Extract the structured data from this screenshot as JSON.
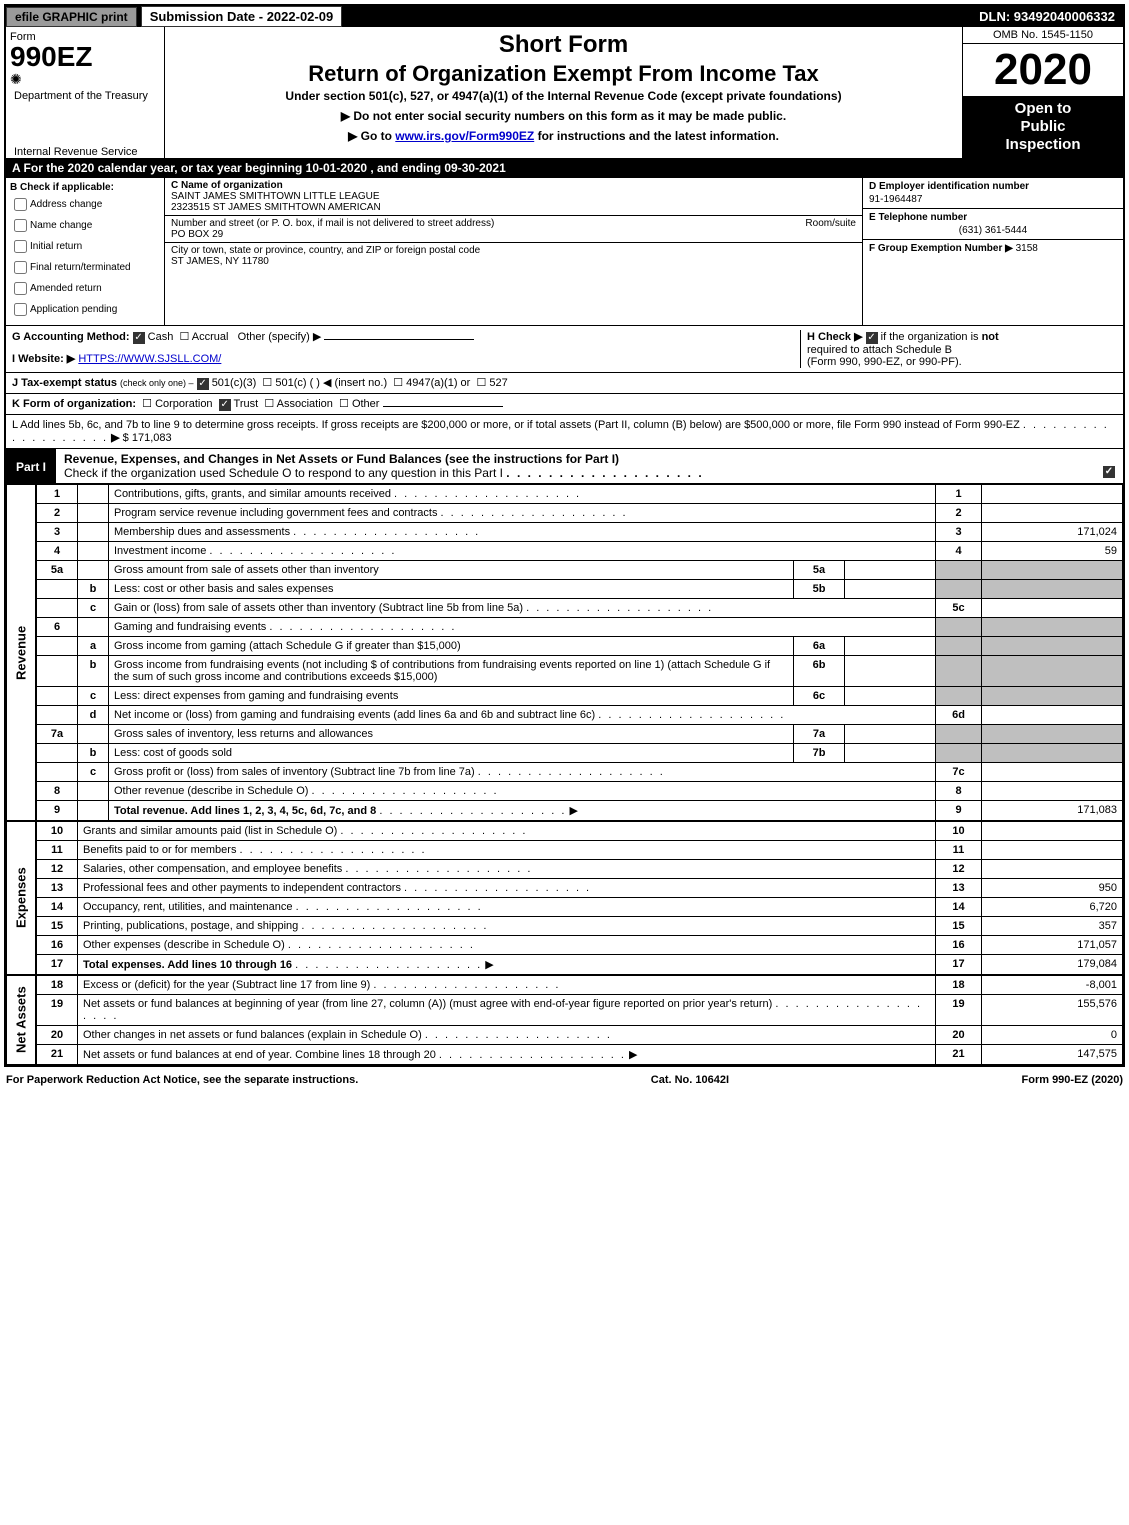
{
  "top_bar": {
    "efile_label": "efile GRAPHIC print",
    "submission_label": "Submission Date - 2022-02-09",
    "dln_label": "DLN: 93492040006332"
  },
  "header": {
    "form_word": "Form",
    "form_number": "990EZ",
    "dept": "Department of the Treasury",
    "irs": "Internal Revenue Service",
    "short_form": "Short Form",
    "main_title": "Return of Organization Exempt From Income Tax",
    "subtitle": "Under section 501(c), 527, or 4947(a)(1) of the Internal Revenue Code (except private foundations)",
    "instr1": "▶ Do not enter social security numbers on this form as it may be made public.",
    "instr2_prefix": "▶ Go to ",
    "instr2_link": "www.irs.gov/Form990EZ",
    "instr2_suffix": " for instructions and the latest information.",
    "omb": "OMB No. 1545-1150",
    "year": "2020",
    "open_line1": "Open to",
    "open_line2": "Public",
    "open_line3": "Inspection"
  },
  "section_a": "A For the 2020 calendar year, or tax year beginning 10-01-2020 , and ending 09-30-2021",
  "section_b": {
    "label": "B Check if applicable:",
    "items": [
      "Address change",
      "Name change",
      "Initial return",
      "Final return/terminated",
      "Amended return",
      "Application pending"
    ]
  },
  "section_c": {
    "name_label": "C Name of organization",
    "name1": "SAINT JAMES SMITHTOWN LITTLE LEAGUE",
    "name2": "2323515 ST JAMES SMITHTOWN AMERICAN",
    "addr_label": "Number and street (or P. O. box, if mail is not delivered to street address)",
    "room_label": "Room/suite",
    "addr": "PO BOX 29",
    "city_label": "City or town, state or province, country, and ZIP or foreign postal code",
    "city": "ST JAMES, NY  11780"
  },
  "section_d": {
    "d_label": "D Employer identification number",
    "d_val": "91-1964487",
    "e_label": "E Telephone number",
    "e_val": "(631) 361-5444",
    "f_label": "F Group Exemption Number",
    "f_arrow": "▶",
    "f_val": "3158"
  },
  "section_g": {
    "label": "G Accounting Method:",
    "cash": "Cash",
    "accrual": "Accrual",
    "other": "Other (specify) ▶"
  },
  "section_h": {
    "label": "H Check ▶",
    "text1": "if the organization is ",
    "bold_not": "not",
    "text2": " required to attach Schedule B",
    "text3": "(Form 990, 990-EZ, or 990-PF)."
  },
  "section_i": {
    "label": "I Website: ▶",
    "url": "HTTPS://WWW.SJSLL.COM/"
  },
  "section_j": {
    "label": "J Tax-exempt status",
    "note": "(check only one) –",
    "opt1": "501(c)(3)",
    "opt2": "501(c) (  ) ◀ (insert no.)",
    "opt3": "4947(a)(1) or",
    "opt4": "527"
  },
  "section_k": {
    "label": "K Form of organization:",
    "corp": "Corporation",
    "trust": "Trust",
    "assoc": "Association",
    "other": "Other"
  },
  "section_l": {
    "text": "L Add lines 5b, 6c, and 7b to line 9 to determine gross receipts. If gross receipts are $200,000 or more, or if total assets (Part II, column (B) below) are $500,000 or more, file Form 990 instead of Form 990-EZ",
    "arrow": "▶",
    "amount": "$ 171,083"
  },
  "part1": {
    "label": "Part I",
    "title": "Revenue, Expenses, and Changes in Net Assets or Fund Balances (see the instructions for Part I)",
    "check_line": "Check if the organization used Schedule O to respond to any question in this Part I"
  },
  "revenue": {
    "side": "Revenue",
    "rows": [
      {
        "n": "1",
        "sub": "",
        "desc": "Contributions, gifts, grants, and similar amounts received",
        "box": "",
        "ln": "1",
        "val": ""
      },
      {
        "n": "2",
        "sub": "",
        "desc": "Program service revenue including government fees and contracts",
        "box": "",
        "ln": "2",
        "val": ""
      },
      {
        "n": "3",
        "sub": "",
        "desc": "Membership dues and assessments",
        "box": "",
        "ln": "3",
        "val": "171,024"
      },
      {
        "n": "4",
        "sub": "",
        "desc": "Investment income",
        "box": "",
        "ln": "4",
        "val": "59"
      },
      {
        "n": "5a",
        "sub": "",
        "desc": "Gross amount from sale of assets other than inventory",
        "box": "5a",
        "ln": "",
        "val": "",
        "shaded": true
      },
      {
        "n": "",
        "sub": "b",
        "desc": "Less: cost or other basis and sales expenses",
        "box": "5b",
        "ln": "",
        "val": "",
        "shaded": true
      },
      {
        "n": "",
        "sub": "c",
        "desc": "Gain or (loss) from sale of assets other than inventory (Subtract line 5b from line 5a)",
        "box": "",
        "ln": "5c",
        "val": ""
      },
      {
        "n": "6",
        "sub": "",
        "desc": "Gaming and fundraising events",
        "box": "",
        "ln": "",
        "val": "",
        "shaded": true
      },
      {
        "n": "",
        "sub": "a",
        "desc": "Gross income from gaming (attach Schedule G if greater than $15,000)",
        "box": "6a",
        "ln": "",
        "val": "",
        "shaded": true
      },
      {
        "n": "",
        "sub": "b",
        "desc": "Gross income from fundraising events (not including $              of contributions from fundraising events reported on line 1) (attach Schedule G if the sum of such gross income and contributions exceeds $15,000)",
        "box": "6b",
        "ln": "",
        "val": "",
        "shaded": true
      },
      {
        "n": "",
        "sub": "c",
        "desc": "Less: direct expenses from gaming and fundraising events",
        "box": "6c",
        "ln": "",
        "val": "",
        "shaded": true
      },
      {
        "n": "",
        "sub": "d",
        "desc": "Net income or (loss) from gaming and fundraising events (add lines 6a and 6b and subtract line 6c)",
        "box": "",
        "ln": "6d",
        "val": ""
      },
      {
        "n": "7a",
        "sub": "",
        "desc": "Gross sales of inventory, less returns and allowances",
        "box": "7a",
        "ln": "",
        "val": "",
        "shaded": true
      },
      {
        "n": "",
        "sub": "b",
        "desc": "Less: cost of goods sold",
        "box": "7b",
        "ln": "",
        "val": "",
        "shaded": true
      },
      {
        "n": "",
        "sub": "c",
        "desc": "Gross profit or (loss) from sales of inventory (Subtract line 7b from line 7a)",
        "box": "",
        "ln": "7c",
        "val": ""
      },
      {
        "n": "8",
        "sub": "",
        "desc": "Other revenue (describe in Schedule O)",
        "box": "",
        "ln": "8",
        "val": ""
      },
      {
        "n": "9",
        "sub": "",
        "desc": "Total revenue. Add lines 1, 2, 3, 4, 5c, 6d, 7c, and 8",
        "box": "",
        "ln": "9",
        "val": "171,083",
        "bold": true,
        "arrow": true
      }
    ]
  },
  "expenses": {
    "side": "Expenses",
    "rows": [
      {
        "n": "10",
        "desc": "Grants and similar amounts paid (list in Schedule O)",
        "ln": "10",
        "val": ""
      },
      {
        "n": "11",
        "desc": "Benefits paid to or for members",
        "ln": "11",
        "val": ""
      },
      {
        "n": "12",
        "desc": "Salaries, other compensation, and employee benefits",
        "ln": "12",
        "val": ""
      },
      {
        "n": "13",
        "desc": "Professional fees and other payments to independent contractors",
        "ln": "13",
        "val": "950"
      },
      {
        "n": "14",
        "desc": "Occupancy, rent, utilities, and maintenance",
        "ln": "14",
        "val": "6,720"
      },
      {
        "n": "15",
        "desc": "Printing, publications, postage, and shipping",
        "ln": "15",
        "val": "357"
      },
      {
        "n": "16",
        "desc": "Other expenses (describe in Schedule O)",
        "ln": "16",
        "val": "171,057"
      },
      {
        "n": "17",
        "desc": "Total expenses. Add lines 10 through 16",
        "ln": "17",
        "val": "179,084",
        "bold": true,
        "arrow": true
      }
    ]
  },
  "netassets": {
    "side": "Net Assets",
    "rows": [
      {
        "n": "18",
        "desc": "Excess or (deficit) for the year (Subtract line 17 from line 9)",
        "ln": "18",
        "val": "-8,001"
      },
      {
        "n": "19",
        "desc": "Net assets or fund balances at beginning of year (from line 27, column (A)) (must agree with end-of-year figure reported on prior year's return)",
        "ln": "19",
        "val": "155,576"
      },
      {
        "n": "20",
        "desc": "Other changes in net assets or fund balances (explain in Schedule O)",
        "ln": "20",
        "val": "0"
      },
      {
        "n": "21",
        "desc": "Net assets or fund balances at end of year. Combine lines 18 through 20",
        "ln": "21",
        "val": "147,575",
        "arrow": true
      }
    ]
  },
  "footer": {
    "left": "For Paperwork Reduction Act Notice, see the separate instructions.",
    "center": "Cat. No. 10642I",
    "right_prefix": "Form ",
    "right_bold": "990-EZ",
    "right_suffix": " (2020)"
  }
}
